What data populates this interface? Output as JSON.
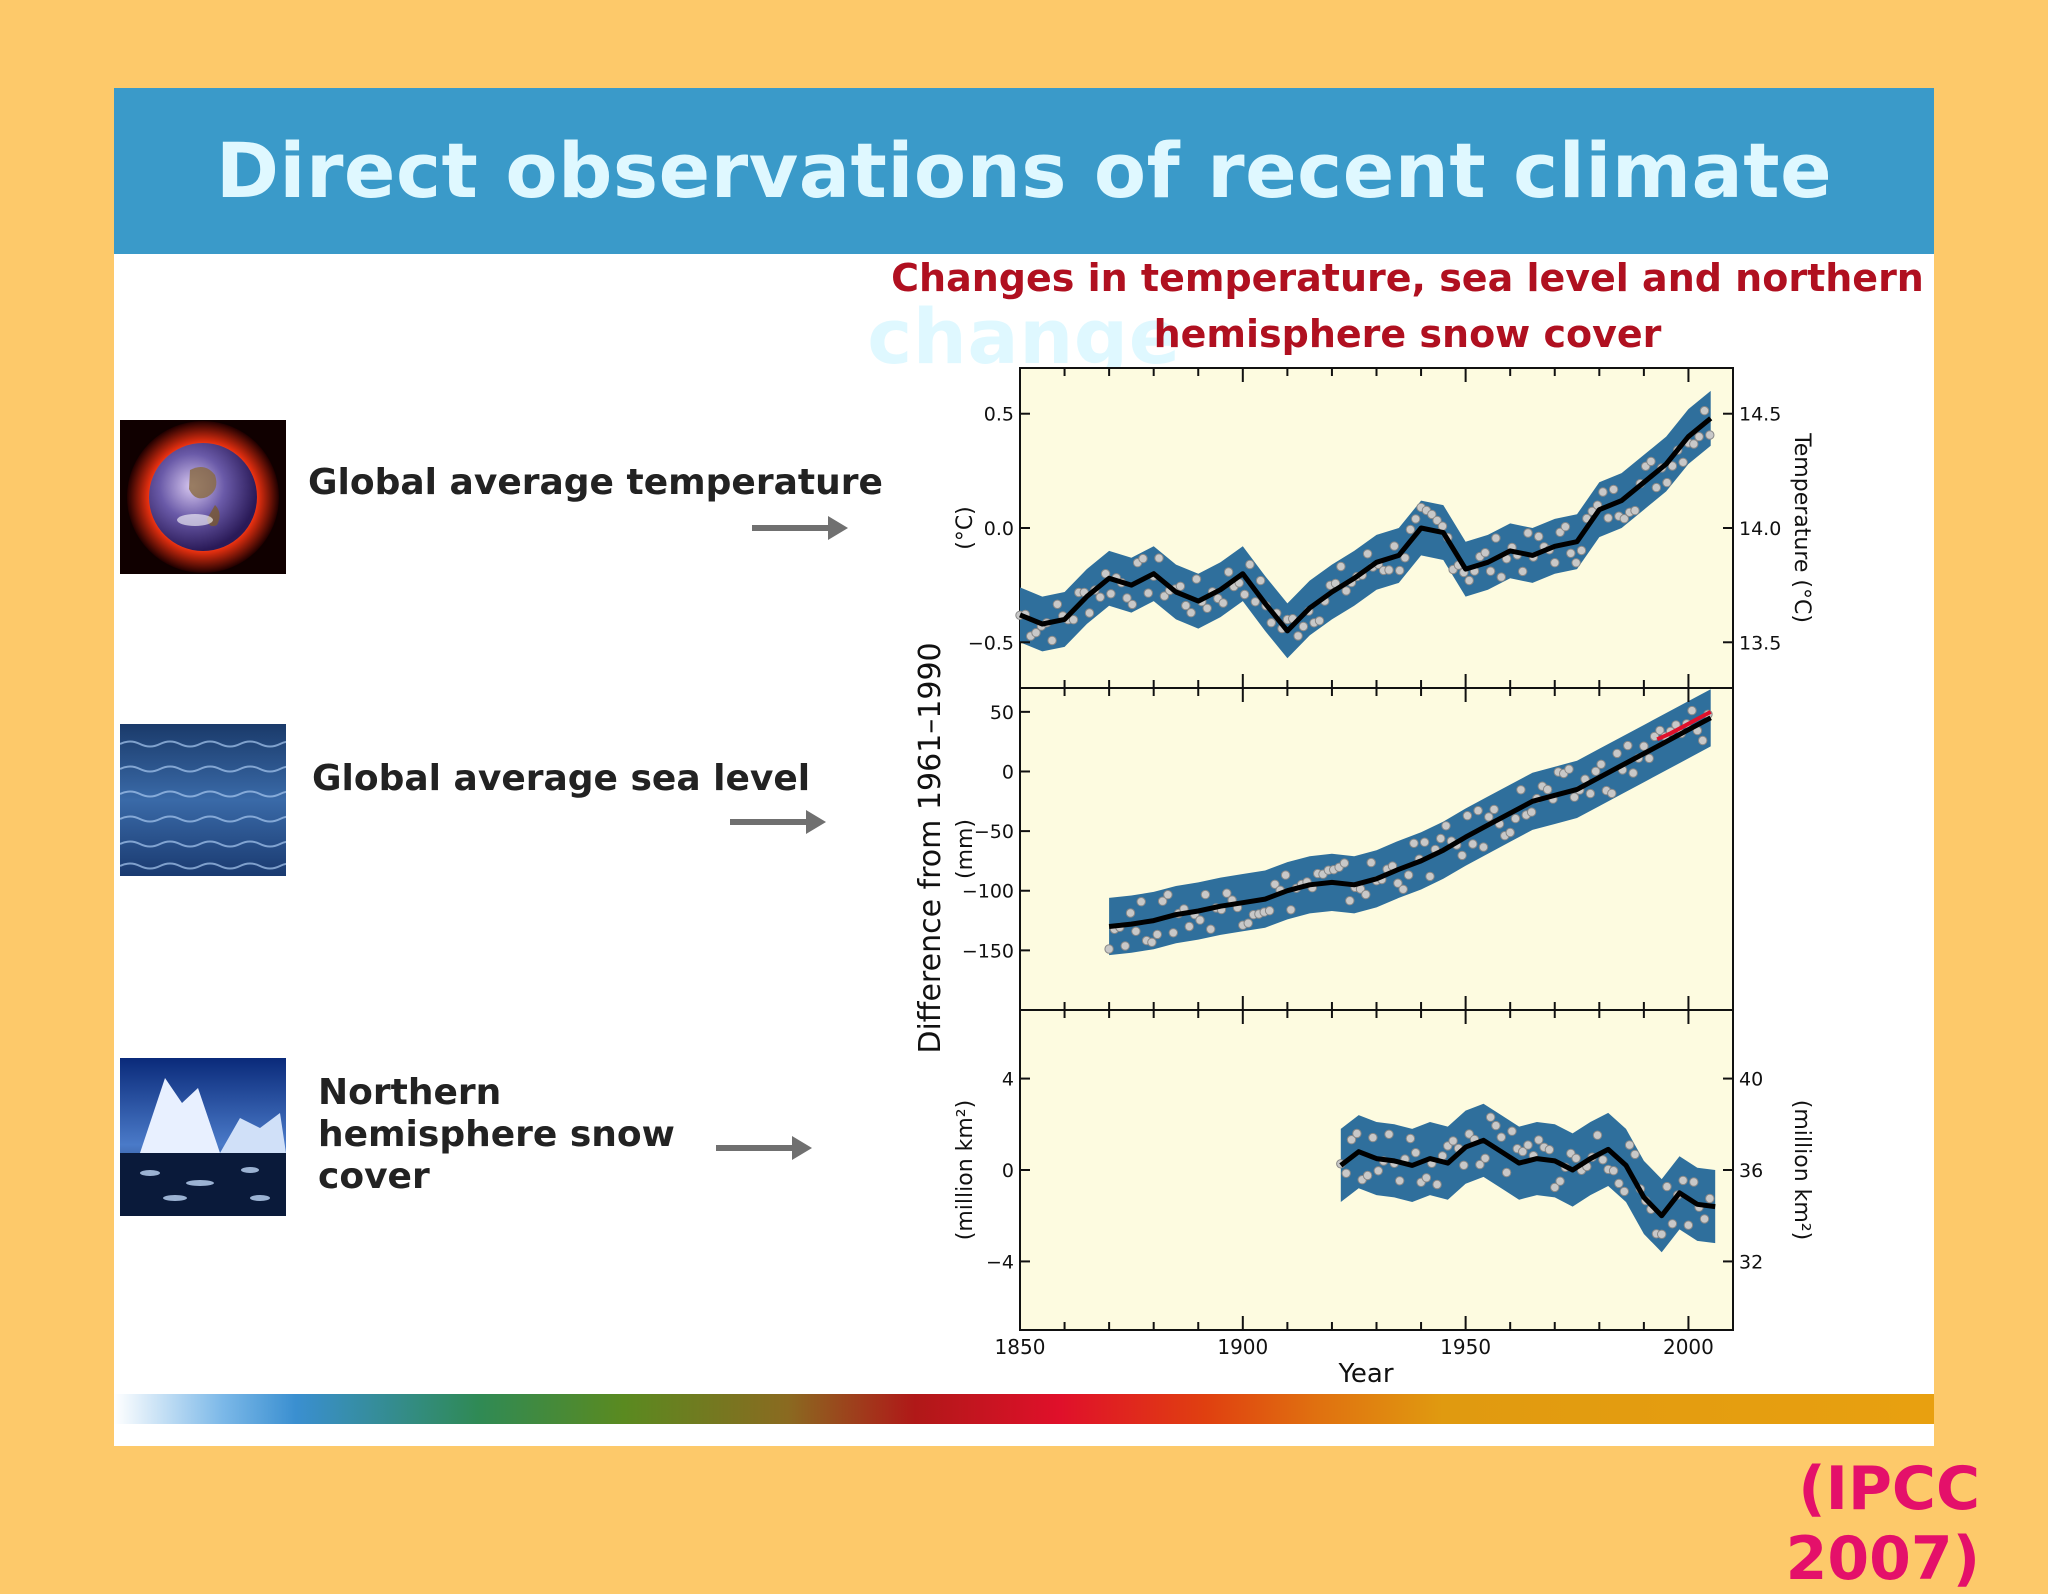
{
  "slide": {
    "title": "Direct observations of recent climate change",
    "citation": "(IPCC 2007)",
    "rows": [
      {
        "label": "Global average temperature",
        "icon": "earth-heat-image"
      },
      {
        "label": "Global average sea level",
        "icon": "ocean-water-image"
      },
      {
        "label": "Northern hemisphere snow cover",
        "icon": "iceberg-image"
      }
    ],
    "colors": {
      "background": "#fdc96a",
      "title_bar": "#3a9ac9",
      "chart_title": "#b01020",
      "citation": "#e4106a",
      "plot_bg": "#fdfbe0",
      "band": "#2f6f9c"
    }
  },
  "chart_data": {
    "type": "line",
    "title": "Changes in temperature, sea level and northern hemisphere snow cover",
    "xlabel": "Year",
    "shared_ylabel": "Difference from 1961–1990",
    "x_ticks": [
      "1850",
      "1900",
      "1950",
      "2000"
    ],
    "xlim": [
      1850,
      2010
    ],
    "panels": [
      {
        "name": "Global average temperature",
        "ylabel_left": "(°C)",
        "ylabel_right": "Temperature (°C)",
        "ylim": [
          -0.7,
          0.7
        ],
        "y_ticks_left": [
          "0.5",
          "0.0",
          "−0.5"
        ],
        "y_ticks_left_values": [
          0.5,
          0.0,
          -0.5
        ],
        "y_ticks_right": [
          "14.5",
          "14.0",
          "13.5"
        ],
        "band_halfwidth": 0.12,
        "series": [
          {
            "x": [
              1850,
              1855,
              1860,
              1865,
              1870,
              1875,
              1880,
              1885,
              1890,
              1895,
              1900,
              1905,
              1910,
              1915,
              1920,
              1925,
              1930,
              1935,
              1940,
              1945,
              1950,
              1955,
              1960,
              1965,
              1970,
              1975,
              1980,
              1985,
              1990,
              1995,
              2000,
              2005
            ],
            "values": [
              -0.38,
              -0.42,
              -0.4,
              -0.3,
              -0.22,
              -0.25,
              -0.2,
              -0.28,
              -0.32,
              -0.27,
              -0.2,
              -0.33,
              -0.45,
              -0.35,
              -0.28,
              -0.22,
              -0.15,
              -0.12,
              0.0,
              -0.02,
              -0.18,
              -0.15,
              -0.1,
              -0.12,
              -0.08,
              -0.06,
              0.08,
              0.12,
              0.2,
              0.28,
              0.4,
              0.48
            ]
          }
        ]
      },
      {
        "name": "Global average sea level",
        "ylabel_left": "(mm)",
        "ylim": [
          -200,
          70
        ],
        "y_ticks_left": [
          "50",
          "0",
          "−50",
          "−100",
          "−150"
        ],
        "y_ticks_left_values": [
          50,
          0,
          -50,
          -100,
          -150
        ],
        "band_halfwidth": 24,
        "series": [
          {
            "x": [
              1870,
              1875,
              1880,
              1885,
              1890,
              1895,
              1900,
              1905,
              1910,
              1915,
              1920,
              1925,
              1930,
              1935,
              1940,
              1945,
              1950,
              1955,
              1960,
              1965,
              1970,
              1975,
              1980,
              1985,
              1990,
              1995,
              2000,
              2005
            ],
            "values": [
              -130,
              -128,
              -125,
              -120,
              -117,
              -113,
              -110,
              -107,
              -100,
              -95,
              -93,
              -95,
              -90,
              -82,
              -75,
              -66,
              -55,
              -45,
              -35,
              -25,
              -20,
              -15,
              -5,
              5,
              15,
              25,
              35,
              45
            ]
          },
          {
            "x": [
              1993,
              1996,
              1999,
              2002,
              2005
            ],
            "values": [
              27,
              32,
              38,
              44,
              50
            ]
          }
        ]
      },
      {
        "name": "Northern hemisphere snow cover",
        "ylabel_left": "(million km²)",
        "ylabel_right": "(million km²)",
        "ylim": [
          -7,
          7
        ],
        "y_ticks_left": [
          "4",
          "0",
          "−4"
        ],
        "y_ticks_left_values": [
          4,
          0,
          -4
        ],
        "y_ticks_right": [
          "40",
          "36",
          "32"
        ],
        "band_halfwidth": 1.6,
        "series": [
          {
            "x": [
              1922,
              1926,
              1930,
              1934,
              1938,
              1942,
              1946,
              1950,
              1954,
              1958,
              1962,
              1966,
              1970,
              1974,
              1978,
              1982,
              1986,
              1990,
              1994,
              1998,
              2002,
              2006
            ],
            "values": [
              0.2,
              0.8,
              0.5,
              0.4,
              0.2,
              0.5,
              0.3,
              1.0,
              1.3,
              0.8,
              0.3,
              0.5,
              0.4,
              0.0,
              0.5,
              0.9,
              0.2,
              -1.2,
              -2.0,
              -1.0,
              -1.5,
              -1.6
            ]
          }
        ]
      }
    ]
  }
}
